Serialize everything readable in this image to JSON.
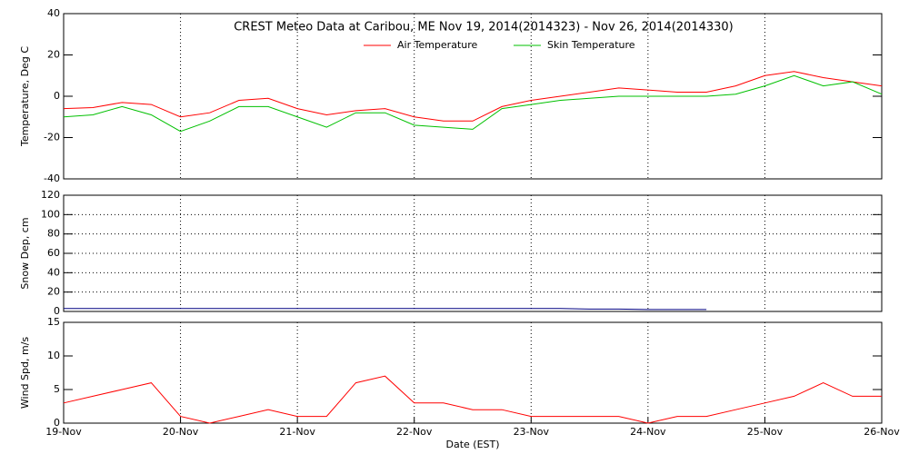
{
  "chart_data": [
    {
      "type": "line",
      "title": "CREST Meteo Data at Caribou, ME   Nov 19, 2014(2014323) - Nov 26, 2014(2014330)",
      "y_label": "Temperature, Deg C",
      "x": [
        0,
        0.25,
        0.5,
        0.75,
        1,
        1.25,
        1.5,
        1.75,
        2,
        2.25,
        2.5,
        2.75,
        3,
        3.25,
        3.5,
        3.75,
        4,
        4.25,
        4.5,
        4.75,
        5,
        5.25,
        5.5,
        5.75,
        6,
        6.25,
        6.5,
        6.75,
        7
      ],
      "series": [
        {
          "name": "Air Temperature",
          "color": "#ff0000",
          "values": [
            -6,
            -5.5,
            -3,
            -4,
            -10,
            -8,
            -2,
            -1,
            -6,
            -9,
            -7,
            -6,
            -10,
            -12,
            -12,
            -5,
            -2,
            0,
            2,
            4,
            3,
            2,
            2,
            5,
            10,
            12,
            9,
            7,
            5
          ]
        },
        {
          "name": "Skin Temperature",
          "color": "#00c000",
          "values": [
            -10,
            -9,
            -5,
            -9,
            -17,
            -12,
            -5,
            -5,
            -10,
            -15,
            -8,
            -8,
            -14,
            -15,
            -16,
            -6,
            -4,
            -2,
            -1,
            0,
            0,
            0,
            0,
            1,
            5,
            10,
            5,
            7,
            1
          ]
        }
      ],
      "xlim": [
        0,
        7
      ],
      "xticks": [
        0,
        1,
        2,
        3,
        4,
        5,
        6,
        7
      ],
      "ylim": [
        -40,
        40
      ],
      "yticks": [
        -40,
        -20,
        0,
        20,
        40
      ],
      "grid": "x",
      "legend": "top"
    },
    {
      "type": "line",
      "y_label": "Snow Dep, cm",
      "x": [
        0,
        0.25,
        0.5,
        0.75,
        1,
        1.25,
        1.5,
        1.75,
        2,
        2.25,
        2.5,
        2.75,
        3,
        3.25,
        3.5,
        3.75,
        4,
        4.25,
        4.5,
        4.75,
        5,
        5.25,
        5.5,
        5.75,
        6,
        6.25,
        6.5,
        6.75,
        7
      ],
      "series": [
        {
          "name": "Snow Depth",
          "color": "#000080",
          "values": [
            3,
            3,
            3,
            3,
            3,
            3,
            3,
            3,
            3,
            3,
            3,
            3,
            3,
            3,
            3,
            3,
            3,
            3,
            2.5,
            2.5,
            2,
            2,
            2,
            null,
            null,
            null,
            null,
            null,
            null
          ]
        }
      ],
      "xlim": [
        0,
        7
      ],
      "xticks": [
        0,
        1,
        2,
        3,
        4,
        5,
        6,
        7
      ],
      "ylim": [
        0,
        120
      ],
      "yticks": [
        0,
        20,
        40,
        60,
        80,
        100,
        120
      ],
      "grid": "both"
    },
    {
      "type": "line",
      "y_label": "Wind Spd, m/s",
      "x_label": "Date (EST)",
      "x": [
        0,
        0.25,
        0.5,
        0.75,
        1,
        1.25,
        1.5,
        1.75,
        2,
        2.25,
        2.5,
        2.75,
        3,
        3.25,
        3.5,
        3.75,
        4,
        4.25,
        4.5,
        4.75,
        5,
        5.25,
        5.5,
        5.75,
        6,
        6.25,
        6.5,
        6.75,
        7
      ],
      "series": [
        {
          "name": "Wind Speed",
          "color": "#ff0000",
          "values": [
            3,
            4,
            5,
            6,
            1,
            0,
            1,
            2,
            1,
            1,
            6,
            7,
            3,
            3,
            2,
            2,
            1,
            1,
            1,
            1,
            0,
            1,
            1,
            2,
            3,
            4,
            6,
            4,
            4
          ]
        }
      ],
      "xlim": [
        0,
        7
      ],
      "xticks": [
        {
          "value": 0,
          "label": "19-Nov"
        },
        {
          "value": 1,
          "label": "20-Nov"
        },
        {
          "value": 2,
          "label": "21-Nov"
        },
        {
          "value": 3,
          "label": "22-Nov"
        },
        {
          "value": 4,
          "label": "23-Nov"
        },
        {
          "value": 5,
          "label": "24-Nov"
        },
        {
          "value": 6,
          "label": "25-Nov"
        },
        {
          "value": 7,
          "label": "26-Nov"
        }
      ],
      "ylim": [
        0,
        15
      ],
      "yticks": [
        0,
        5,
        10,
        15
      ],
      "grid": "x"
    }
  ]
}
